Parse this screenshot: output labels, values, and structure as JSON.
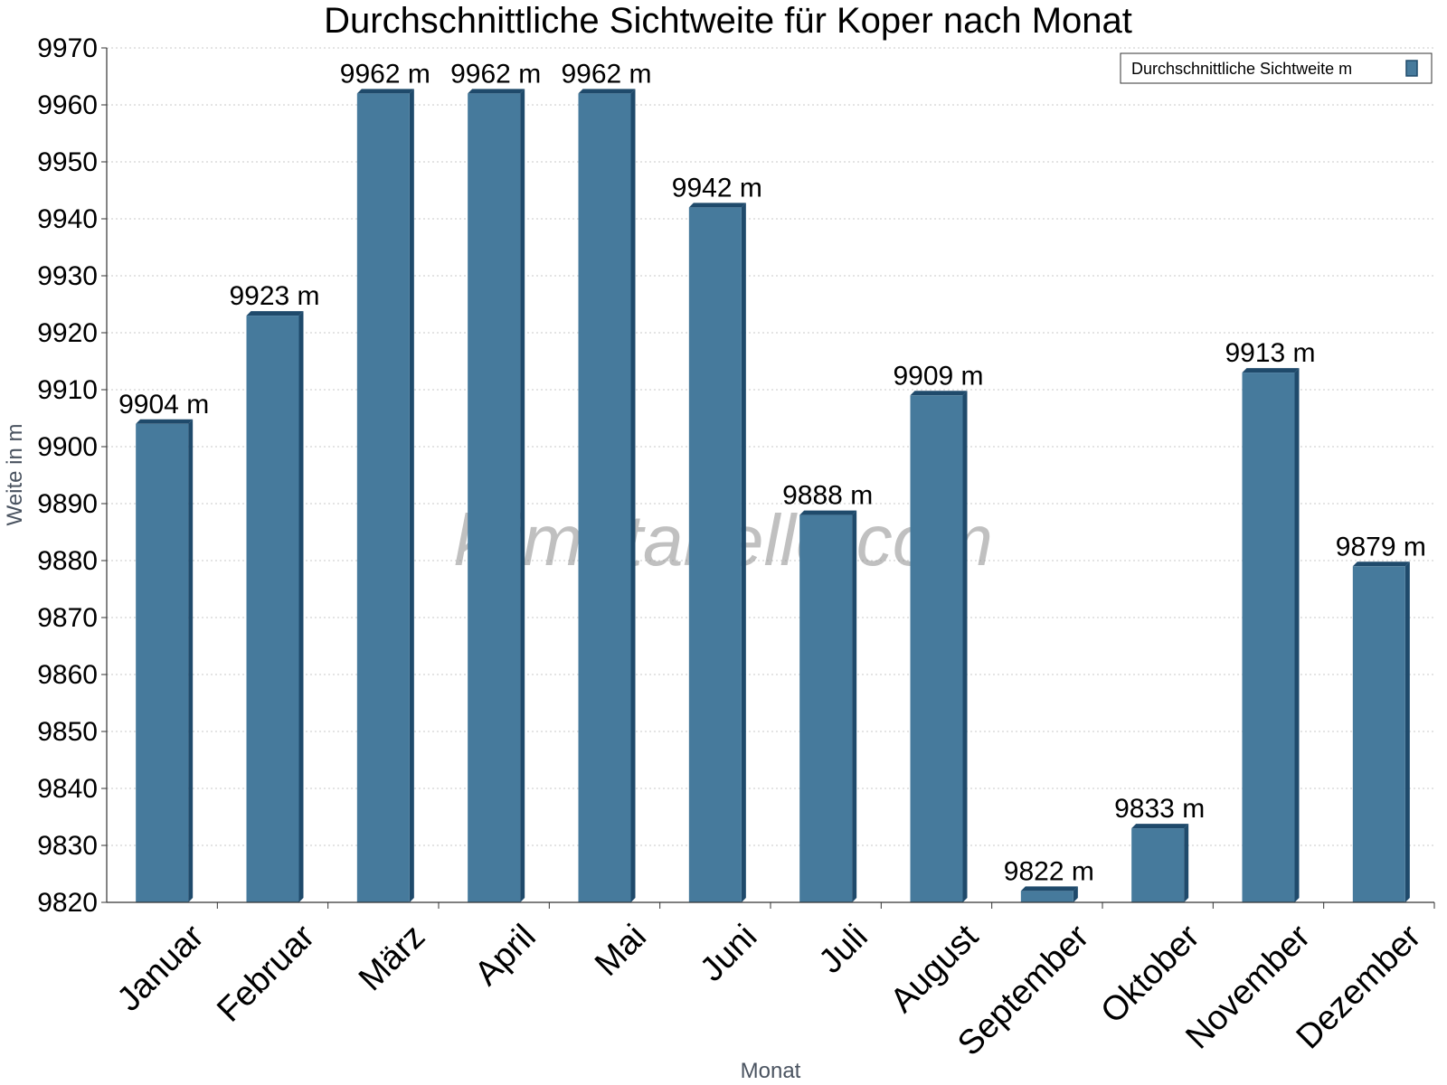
{
  "chart_data": {
    "type": "bar",
    "title": "Durchschnittliche Sichtweite für Koper nach Monat",
    "xlabel": "Monat",
    "ylabel": "Weite in m",
    "ylim": [
      9820,
      9970
    ],
    "ytick_step": 10,
    "grid": "horizontal dotted",
    "legend_position": "top-right",
    "unit_suffix": " m",
    "categories": [
      "Januar",
      "Februar",
      "März",
      "April",
      "Mai",
      "Juni",
      "Juli",
      "August",
      "September",
      "Oktober",
      "November",
      "Dezember"
    ],
    "series": [
      {
        "name": "Durchschnittliche Sichtweite m",
        "color": "#467a9c",
        "edge_color": "#1f4a6b",
        "values": [
          9904,
          9923,
          9962,
          9962,
          9962,
          9942,
          9888,
          9909,
          9822,
          9833,
          9913,
          9879
        ]
      }
    ],
    "watermark": "klimatabelle.com"
  }
}
